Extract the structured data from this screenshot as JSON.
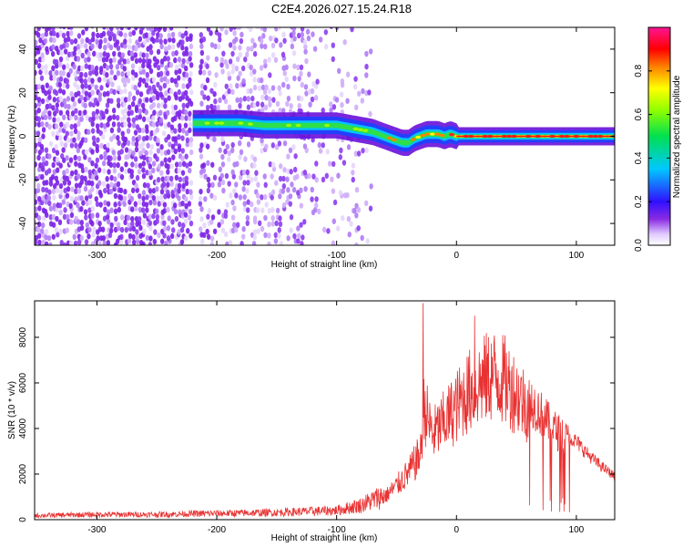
{
  "title": "C2E4.2026.027.15.24.R18",
  "chart_data": [
    {
      "type": "heatmap",
      "title": "C2E4.2026.027.15.24.R18",
      "xlabel": "Height of straight line (km)",
      "ylabel": "Frequency (Hz)",
      "xlim": [
        -352,
        132
      ],
      "ylim": [
        -50,
        50
      ],
      "xticks": [
        -300,
        -200,
        -100,
        0,
        100
      ],
      "xtick_labels": [
        "-300",
        "-200",
        "-100",
        "0",
        "100"
      ],
      "yticks": [
        -40,
        -20,
        0,
        20,
        40
      ],
      "ytick_labels": [
        "-40",
        "-20",
        "0",
        "20",
        "40"
      ],
      "colorbar": {
        "label": "Normalized spectral amplitude",
        "range": [
          0,
          1
        ],
        "ticks": [
          0.0,
          0.2,
          0.4,
          0.6,
          0.8
        ],
        "tick_labels": [
          "0.0",
          "0.2",
          "0.4",
          "0.6",
          "0.8"
        ],
        "colormap": "rainbow (white-violet-blue-cyan-green-yellow-red-magenta)"
      },
      "ridge": {
        "description": "dominant frequency trace",
        "height_km": [
          -220,
          -200,
          -180,
          -160,
          -140,
          -120,
          -100,
          -90,
          -80,
          -70,
          -60,
          -50,
          -45,
          -40,
          -35,
          -30,
          -25,
          -20,
          -15,
          -10,
          -5,
          0,
          20,
          60,
          100,
          130
        ],
        "frequency_hz": [
          6,
          6,
          6,
          5,
          5,
          5,
          5,
          4,
          3,
          2,
          0,
          -2,
          -3,
          -3,
          -1,
          0,
          1,
          1,
          1,
          0,
          1,
          0,
          0,
          0,
          0,
          0
        ]
      },
      "noise_region_km": [
        -352,
        -70
      ]
    },
    {
      "type": "line",
      "xlabel": "Height of straight line (km)",
      "ylabel": "SNR (10 * v/v)",
      "xlim": [
        -352,
        132
      ],
      "ylim": [
        0,
        9600
      ],
      "xticks": [
        -300,
        -200,
        -100,
        0,
        100
      ],
      "xtick_labels": [
        "-300",
        "-200",
        "-100",
        "0",
        "100"
      ],
      "yticks": [
        0,
        2000,
        4000,
        6000,
        8000
      ],
      "ytick_labels": [
        "0",
        "2000",
        "4000",
        "6000",
        "8000"
      ],
      "color": "#e83232",
      "series": [
        {
          "name": "SNR envelope",
          "x": [
            -352,
            -300,
            -250,
            -210,
            -200,
            -150,
            -100,
            -80,
            -60,
            -50,
            -40,
            -30,
            -27,
            -20,
            -10,
            0,
            10,
            20,
            30,
            40,
            50,
            60,
            70,
            80,
            90,
            100,
            110,
            120,
            132
          ],
          "y": [
            200,
            250,
            250,
            300,
            300,
            350,
            450,
            700,
            1200,
            1800,
            2500,
            3500,
            6000,
            4500,
            5200,
            6000,
            6800,
            7300,
            7700,
            7400,
            6700,
            6000,
            5200,
            4500,
            4000,
            3600,
            3000,
            2500,
            2000
          ]
        }
      ],
      "peaks": [
        {
          "x": -28,
          "y": 9500
        },
        {
          "x": 15,
          "y": 8950
        }
      ]
    }
  ]
}
